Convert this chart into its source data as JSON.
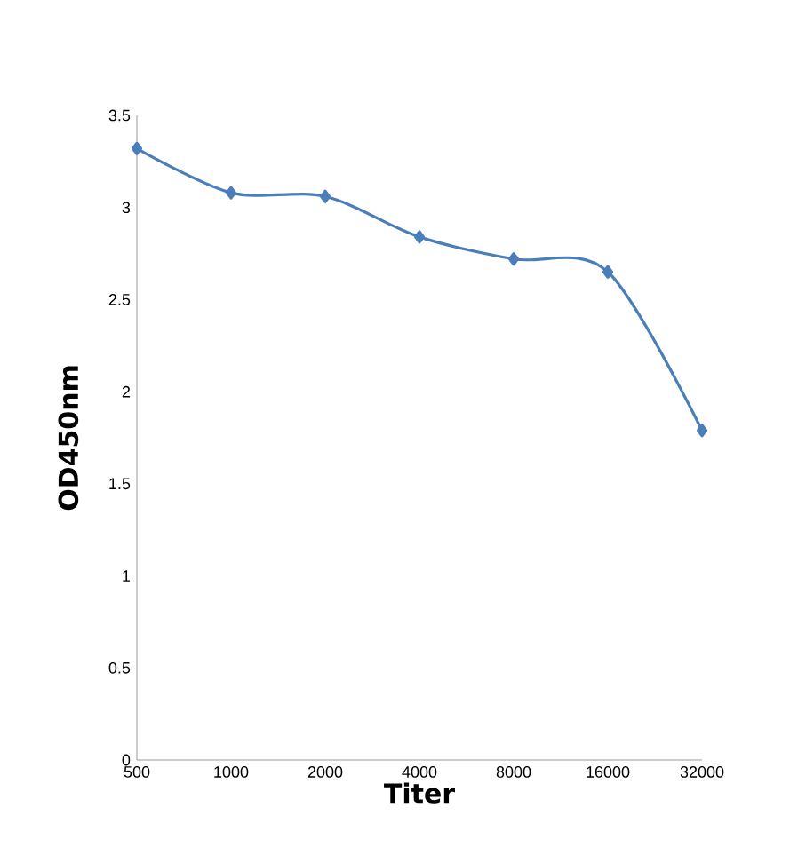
{
  "chart_data": {
    "type": "line",
    "xlabel": "Titer",
    "ylabel": "OD450nm",
    "categories": [
      "500",
      "1000",
      "2000",
      "4000",
      "8000",
      "16000",
      "32000"
    ],
    "series": [
      {
        "color": "#4a7ebb",
        "values": [
          3.32,
          3.08,
          3.06,
          2.84,
          2.72,
          2.65,
          1.79
        ]
      }
    ],
    "ylim": [
      0,
      3.5
    ],
    "yticks": [
      0,
      0.5,
      1,
      1.5,
      2,
      2.5,
      3,
      3.5
    ],
    "marker": "diamond",
    "line_style": "solid"
  }
}
